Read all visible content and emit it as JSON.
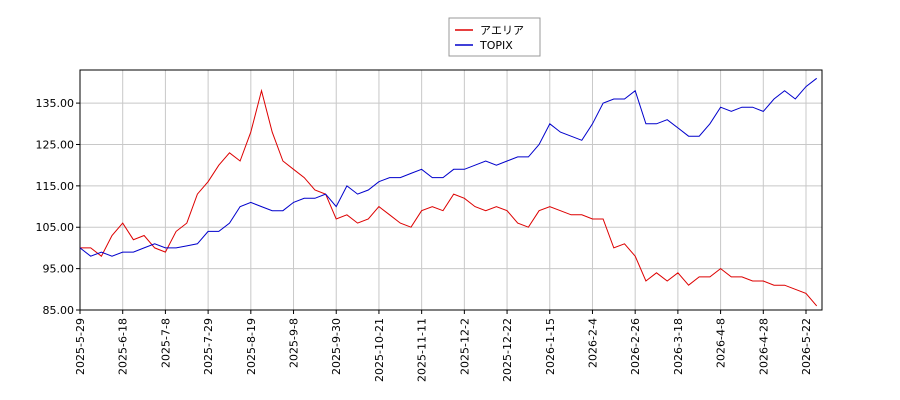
{
  "chart_data": {
    "type": "line",
    "categories": [
      "2025-5-29",
      null,
      null,
      null,
      "2025-6-18",
      null,
      null,
      null,
      "2025-7-8",
      null,
      null,
      null,
      "2025-7-29",
      null,
      null,
      null,
      "2025-8-19",
      null,
      null,
      null,
      "2025-9-8",
      null,
      null,
      null,
      "2025-9-30",
      null,
      null,
      null,
      "2025-10-21",
      null,
      null,
      null,
      "2025-11-11",
      null,
      null,
      null,
      "2025-12-2",
      null,
      null,
      null,
      "2025-12-22",
      null,
      null,
      null,
      "2026-1-15",
      null,
      null,
      null,
      "2026-2-4",
      null,
      null,
      null,
      "2026-2-26",
      null,
      null,
      null,
      "2026-3-18",
      null,
      null,
      null,
      "2026-4-8",
      null,
      null,
      null,
      "2026-4-28",
      null,
      null,
      null,
      "2026-5-22",
      null
    ],
    "series": [
      {
        "name": "アエリア",
        "color": "#dd0000",
        "values": [
          100,
          100,
          98,
          103,
          106,
          102,
          103,
          100,
          99,
          104,
          106,
          113,
          116,
          120,
          123,
          121,
          128,
          138,
          128,
          121,
          119,
          117,
          114,
          113,
          107,
          108,
          106,
          107,
          110,
          108,
          106,
          105,
          109,
          110,
          109,
          113,
          112,
          110,
          109,
          110,
          109,
          106,
          105,
          109,
          110,
          109,
          108,
          108,
          107,
          107,
          100,
          101,
          98,
          92,
          94,
          92,
          94,
          91,
          93,
          93,
          95,
          93,
          93,
          92,
          92,
          91,
          91,
          90,
          89,
          86
        ]
      },
      {
        "name": "TOPIX",
        "color": "#0000cc",
        "values": [
          100,
          98,
          99,
          98,
          99,
          99,
          100,
          101,
          100,
          100,
          100.5,
          101,
          104,
          104,
          106,
          110,
          111,
          110,
          109,
          109,
          111,
          112,
          112,
          113,
          110,
          115,
          113,
          114,
          116,
          117,
          117,
          118,
          119,
          117,
          117,
          119,
          119,
          120,
          121,
          120,
          121,
          122,
          122,
          125,
          130,
          128,
          127,
          126,
          130,
          135,
          136,
          136,
          138,
          130,
          130,
          131,
          129,
          127,
          127,
          130,
          134,
          133,
          134,
          134,
          133,
          136,
          138,
          136,
          139,
          141
        ]
      }
    ],
    "ylim": [
      85,
      143
    ],
    "yticks": [
      {
        "value": 85,
        "label": "85.00"
      },
      {
        "value": 95,
        "label": "95.00"
      },
      {
        "value": 105,
        "label": "105.00"
      },
      {
        "value": 115,
        "label": "115.00"
      },
      {
        "value": 125,
        "label": "125.00"
      },
      {
        "value": 135,
        "label": "135.00"
      }
    ],
    "grid": true
  }
}
